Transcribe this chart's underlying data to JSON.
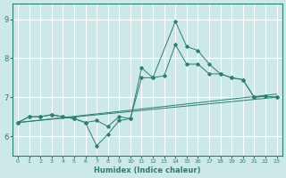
{
  "xlabel": "Humidex (Indice chaleur)",
  "xlim": [
    -0.5,
    23.5
  ],
  "ylim": [
    5.5,
    9.4
  ],
  "yticks": [
    6,
    7,
    8,
    9
  ],
  "xticks": [
    0,
    1,
    2,
    3,
    4,
    5,
    6,
    7,
    8,
    9,
    10,
    11,
    12,
    13,
    14,
    15,
    16,
    17,
    18,
    19,
    20,
    21,
    22,
    23
  ],
  "bg_color": "#cce8e8",
  "grid_color": "#ffffff",
  "line_color": "#2e7d6e",
  "line1_x": [
    0,
    1,
    2,
    3,
    4,
    5,
    6,
    7,
    8,
    9,
    10,
    11,
    12,
    14,
    15,
    16,
    17,
    18,
    19,
    20,
    21,
    22,
    23
  ],
  "line1_y": [
    6.35,
    6.5,
    6.5,
    6.55,
    6.5,
    6.45,
    6.35,
    5.75,
    6.05,
    6.4,
    6.45,
    7.75,
    7.5,
    8.95,
    8.3,
    8.2,
    7.85,
    7.6,
    7.5,
    7.45,
    7.0,
    7.02,
    7.0
  ],
  "line2_x": [
    0,
    1,
    2,
    3,
    4,
    5,
    6,
    7,
    8,
    9,
    10,
    11,
    12,
    13,
    14,
    15,
    16,
    17,
    18,
    19,
    20,
    21,
    22,
    23
  ],
  "line2_y": [
    6.35,
    6.5,
    6.5,
    6.55,
    6.5,
    6.45,
    6.35,
    6.4,
    6.25,
    6.5,
    6.45,
    7.5,
    7.5,
    7.55,
    8.35,
    7.85,
    7.85,
    7.6,
    7.6,
    7.5,
    7.45,
    7.0,
    7.02,
    7.0
  ]
}
